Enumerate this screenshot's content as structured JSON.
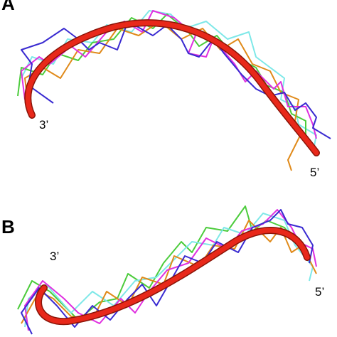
{
  "panels": [
    {
      "label": "A",
      "end_labels": [
        "3’",
        "5’"
      ]
    },
    {
      "label": "B",
      "end_labels": [
        "3’",
        "5’"
      ]
    }
  ]
}
